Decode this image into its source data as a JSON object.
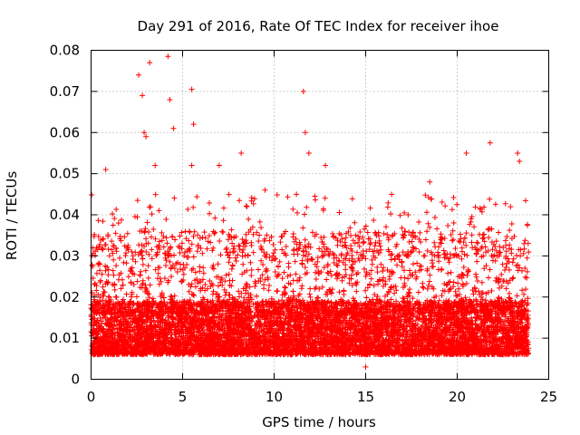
{
  "chart_data": {
    "type": "scatter",
    "title": "Day 291 of 2016, Rate Of TEC Index for receiver ihoe",
    "xlabel": "GPS time / hours",
    "ylabel": "ROTI / TECUs",
    "xlim": [
      0,
      25
    ],
    "ylim": [
      0,
      0.08
    ],
    "xticks": [
      0,
      5,
      10,
      15,
      20,
      25
    ],
    "xtick_labels": [
      "0",
      "5",
      "10",
      "15",
      "20",
      "25"
    ],
    "yticks": [
      0,
      0.01,
      0.02,
      0.03,
      0.04,
      0.05,
      0.06,
      0.07,
      0.08
    ],
    "ytick_labels": [
      "0",
      "0.01",
      "0.02",
      "0.03",
      "0.04",
      "0.05",
      "0.06",
      "0.07",
      "0.08"
    ],
    "grid": true,
    "marker": "plus",
    "color": "#ff0000",
    "series": [
      {
        "name": "ROTI",
        "x_range": [
          0,
          23.9
        ],
        "typical_band": [
          0.004,
          0.03
        ],
        "sample_points": [
          [
            0.3,
            0.032
          ],
          [
            0.8,
            0.051
          ],
          [
            1.5,
            0.038
          ],
          [
            2.6,
            0.074
          ],
          [
            2.8,
            0.069
          ],
          [
            2.9,
            0.06
          ],
          [
            3.0,
            0.059
          ],
          [
            3.2,
            0.077
          ],
          [
            3.5,
            0.052
          ],
          [
            4.2,
            0.0785
          ],
          [
            4.3,
            0.068
          ],
          [
            4.5,
            0.061
          ],
          [
            5.5,
            0.052
          ],
          [
            5.5,
            0.0705
          ],
          [
            5.6,
            0.062
          ],
          [
            7.0,
            0.052
          ],
          [
            8.2,
            0.055
          ],
          [
            9.5,
            0.046
          ],
          [
            11.6,
            0.07
          ],
          [
            11.7,
            0.06
          ],
          [
            11.9,
            0.055
          ],
          [
            12.8,
            0.052
          ],
          [
            15.0,
            0.003
          ],
          [
            18.5,
            0.048
          ],
          [
            20.5,
            0.055
          ],
          [
            21.8,
            0.0575
          ],
          [
            23.3,
            0.055
          ],
          [
            23.4,
            0.053
          ],
          [
            23.7,
            0.027
          ]
        ]
      }
    ]
  }
}
